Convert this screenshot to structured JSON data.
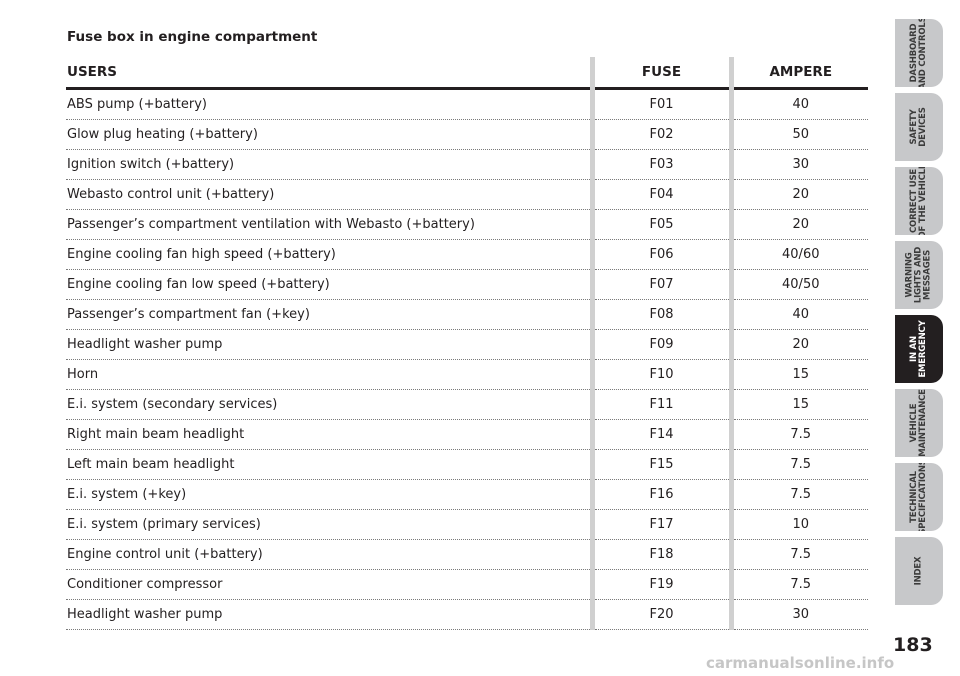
{
  "section_title": "Fuse box in engine compartment",
  "table": {
    "headers": {
      "users": "USERS",
      "fuse": "FUSE",
      "ampere": "AMPERE"
    },
    "rows": [
      {
        "users": "ABS pump (+battery)",
        "fuse": "F01",
        "ampere": "40"
      },
      {
        "users": "Glow plug heating (+battery)",
        "fuse": "F02",
        "ampere": "50"
      },
      {
        "users": "Ignition switch (+battery)",
        "fuse": "F03",
        "ampere": "30"
      },
      {
        "users": "Webasto control unit (+battery)",
        "fuse": "F04",
        "ampere": "20"
      },
      {
        "users": "Passenger’s compartment ventilation with Webasto (+battery)",
        "fuse": "F05",
        "ampere": "20"
      },
      {
        "users": "Engine cooling fan high speed (+battery)",
        "fuse": "F06",
        "ampere": "40/60"
      },
      {
        "users": "Engine cooling fan low speed (+battery)",
        "fuse": "F07",
        "ampere": "40/50"
      },
      {
        "users": "Passenger’s compartment fan (+key)",
        "fuse": "F08",
        "ampere": "40"
      },
      {
        "users": "Headlight washer pump",
        "fuse": "F09",
        "ampere": "20"
      },
      {
        "users": "Horn",
        "fuse": "F10",
        "ampere": "15"
      },
      {
        "users": "E.i. system (secondary services)",
        "fuse": "F11",
        "ampere": "15"
      },
      {
        "users": "Right main beam headlight",
        "fuse": "F14",
        "ampere": "7.5"
      },
      {
        "users": "Left main beam headlight",
        "fuse": "F15",
        "ampere": "7.5"
      },
      {
        "users": "E.i. system (+key)",
        "fuse": "F16",
        "ampere": "7.5"
      },
      {
        "users": "E.i. system (primary services)",
        "fuse": "F17",
        "ampere": "10"
      },
      {
        "users": "Engine control unit (+battery)",
        "fuse": "F18",
        "ampere": "7.5"
      },
      {
        "users": "Conditioner compressor",
        "fuse": "F19",
        "ampere": "7.5"
      },
      {
        "users": "Headlight washer pump",
        "fuse": "F20",
        "ampere": "30"
      }
    ]
  },
  "sidebar": {
    "tabs": [
      {
        "label": "DASHBOARD\nAND CONTROLS",
        "active": false
      },
      {
        "label": "SAFETY\nDEVICES",
        "active": false
      },
      {
        "label": "CORRECT USE\nOF THE VEHICLE",
        "active": false
      },
      {
        "label": "WARNING\nLIGHTS AND\nMESSAGES",
        "active": false
      },
      {
        "label": "IN AN\nEMERGENCY",
        "active": true
      },
      {
        "label": "VEHICLE\nMAINTENANCE",
        "active": false
      },
      {
        "label": "TECHNICAL\nSPECIFICATIONS",
        "active": false
      },
      {
        "label": "INDEX",
        "active": false
      }
    ],
    "colors": {
      "inactive": "#c7c8ca",
      "active": "#231f20"
    }
  },
  "page_number": "183",
  "watermark": "carmanualsonline.info"
}
